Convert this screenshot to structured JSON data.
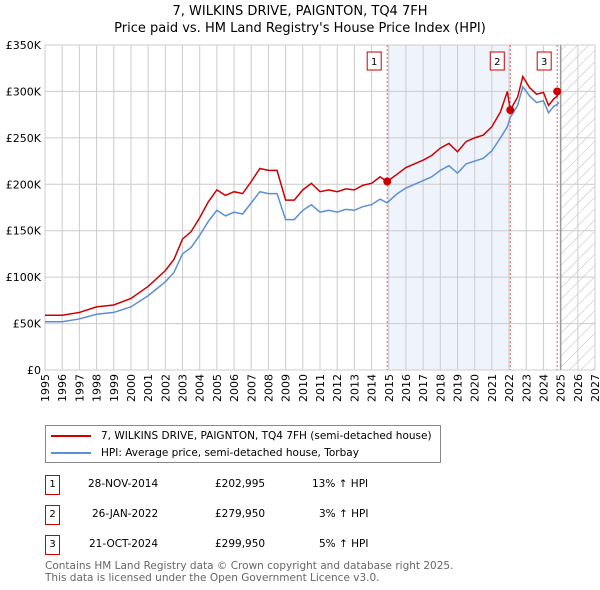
{
  "chart_data": {
    "type": "line",
    "title": "7, WILKINS DRIVE, PAIGNTON, TQ4 7FH",
    "subtitle": "Price paid vs. HM Land Registry's House Price Index (HPI)",
    "xlim": [
      1995,
      2027
    ],
    "ylim": [
      0,
      350000
    ],
    "yticks": [
      "£0",
      "£50K",
      "£100K",
      "£150K",
      "£200K",
      "£250K",
      "£300K",
      "£350K"
    ],
    "xticks": [
      "1995",
      "1996",
      "1997",
      "1998",
      "1999",
      "2000",
      "2001",
      "2002",
      "2003",
      "2004",
      "2005",
      "2006",
      "2007",
      "2008",
      "2009",
      "2010",
      "2011",
      "2012",
      "2013",
      "2014",
      "2015",
      "2016",
      "2017",
      "2018",
      "2019",
      "2020",
      "2021",
      "2022",
      "2023",
      "2024",
      "2025",
      "2026",
      "2027"
    ],
    "grid": true,
    "x": [
      1995,
      1996,
      1997,
      1998,
      1999,
      2000,
      2001,
      2002,
      2002.5,
      2003,
      2003.5,
      2004,
      2004.5,
      2005,
      2005.5,
      2006,
      2006.5,
      2007,
      2007.5,
      2008,
      2008.5,
      2009,
      2009.5,
      2010,
      2010.5,
      2011,
      2011.5,
      2012,
      2012.5,
      2013,
      2013.5,
      2014,
      2014.5,
      2014.9,
      2015.5,
      2016,
      2016.5,
      2017,
      2017.5,
      2018,
      2018.5,
      2019,
      2019.5,
      2020,
      2020.5,
      2021,
      2021.5,
      2021.9,
      2022.07,
      2022.5,
      2022.8,
      2023.2,
      2023.6,
      2024,
      2024.3,
      2024.6,
      2024.8,
      2024.9
    ],
    "series": [
      {
        "name": "7, WILKINS DRIVE, PAIGNTON, TQ4 7FH (semi-detached house)",
        "color": "#cc0000",
        "values_k": [
          59,
          59,
          62,
          68,
          70,
          77,
          90,
          107,
          119,
          141,
          149,
          164,
          181,
          194,
          188,
          192,
          190,
          203,
          217,
          215,
          215,
          183,
          183,
          194,
          201,
          192,
          194,
          192,
          195,
          194,
          199,
          201,
          208,
          203,
          211,
          218,
          222,
          226,
          231,
          239,
          244,
          235,
          246,
          250,
          253,
          262,
          278,
          300,
          280,
          294,
          316,
          304,
          297,
          299,
          285,
          292,
          295,
          300
        ]
      },
      {
        "name": "HPI: Average price, semi-detached house, Torbay",
        "color": "#5b8fd4",
        "values_k": [
          52,
          52,
          55,
          60,
          62,
          68,
          80,
          95,
          105,
          125,
          132,
          145,
          160,
          172,
          166,
          170,
          168,
          180,
          192,
          190,
          190,
          162,
          162,
          172,
          178,
          170,
          172,
          170,
          173,
          172,
          176,
          178,
          184,
          180,
          190,
          196,
          200,
          204,
          208,
          215,
          220,
          212,
          222,
          225,
          228,
          236,
          250,
          262,
          272,
          285,
          305,
          295,
          288,
          290,
          277,
          284,
          286,
          288
        ]
      }
    ],
    "sales": [
      {
        "id": "1",
        "x": 2014.91,
        "price": 202995,
        "date": "28-NOV-2014",
        "price_label": "£202,995",
        "hpi": "13% ↑ HPI"
      },
      {
        "id": "2",
        "x": 2022.07,
        "price": 279950,
        "date": "26-JAN-2022",
        "price_label": "£279,950",
        "hpi": "3% ↑ HPI"
      },
      {
        "id": "3",
        "x": 2024.8,
        "price": 299950,
        "date": "21-OCT-2024",
        "price_label": "£299,950",
        "hpi": "5% ↑ HPI"
      }
    ],
    "shaded_range": [
      2014.91,
      2022.07
    ],
    "future_from": 2025
  },
  "footer": {
    "line1": "Contains HM Land Registry data © Crown copyright and database right 2025.",
    "line2": "This data is licensed under the Open Government Licence v3.0."
  }
}
